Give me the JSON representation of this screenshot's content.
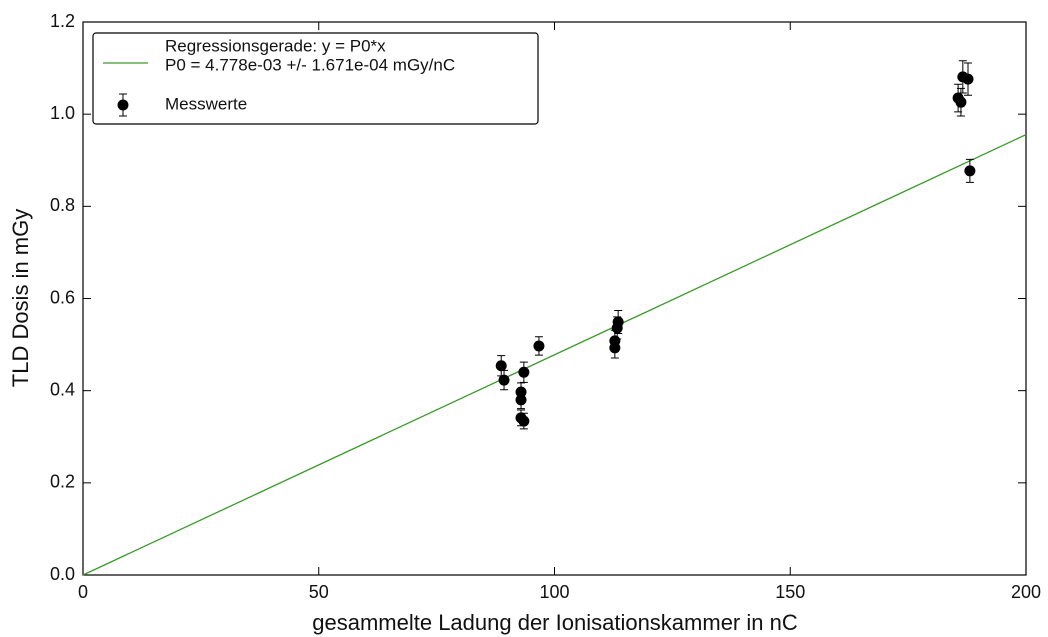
{
  "chart_data": {
    "type": "scatter",
    "xlabel": "gesammelte Ladung der Ionisationskammer in nC",
    "ylabel": "TLD Dosis in mGy",
    "xlim": [
      0,
      200
    ],
    "ylim": [
      0,
      1.2
    ],
    "xticks": [
      0,
      50,
      100,
      150,
      200
    ],
    "yticks": [
      {
        "value": 0,
        "label": "0.0"
      },
      0.2,
      0.4,
      0.6,
      0.8,
      {
        "value": 1,
        "label": "1.0"
      },
      1.2
    ],
    "legend": "upper left",
    "annotation": "P0 = 4.778e-03 +/- 1.671e-04 mGy/nC",
    "series": [
      {
        "name": "Regressionsgerade: y = P0*x",
        "type": "line",
        "color": "#3a9a2a",
        "x": [
          0,
          200
        ],
        "values": [
          0,
          0.9556
        ]
      },
      {
        "name": "Messwerte",
        "type": "scatter",
        "color": "#000000",
        "x": [
          88.7,
          89.3,
          92.9,
          92.9,
          92.9,
          93.5,
          93.5,
          96.7,
          112.8,
          112.8,
          113.3,
          113.5,
          185.6,
          186.2,
          186.6,
          187.7,
          188.1
        ],
        "values": [
          0.454,
          0.423,
          0.397,
          0.38,
          0.341,
          0.334,
          0.44,
          0.497,
          0.508,
          0.493,
          0.536,
          0.549,
          1.035,
          1.026,
          1.081,
          1.076,
          0.877
        ],
        "errors": [
          0.022,
          0.021,
          0.02,
          0.019,
          0.017,
          0.017,
          0.022,
          0.02,
          0.023,
          0.022,
          0.024,
          0.025,
          0.03,
          0.03,
          0.035,
          0.035,
          0.025
        ]
      }
    ]
  }
}
